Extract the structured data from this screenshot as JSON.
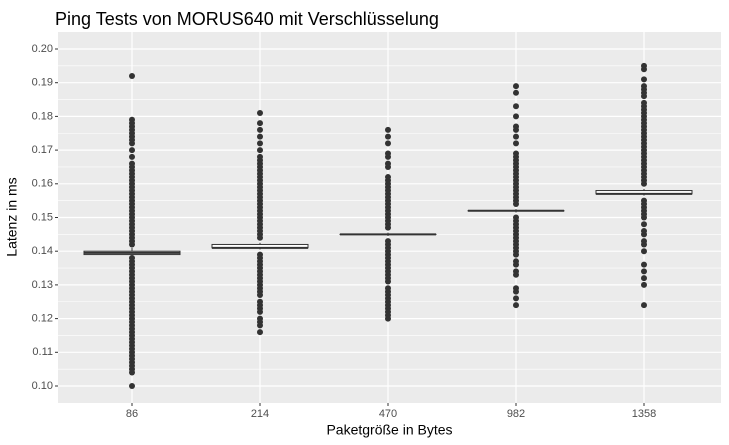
{
  "chart_data": {
    "type": "box",
    "title": "Ping Tests von MORUS640 mit Verschlüsselung",
    "xlabel": "Paketgröße in Bytes",
    "ylabel": "Latenz in ms",
    "categories": [
      "86",
      "214",
      "470",
      "982",
      "1358"
    ],
    "ylim": [
      0.095,
      0.205
    ],
    "yticks": [
      0.1,
      0.11,
      0.12,
      0.13,
      0.14,
      0.15,
      0.16,
      0.17,
      0.18,
      0.19,
      0.2
    ],
    "ytick_labels": [
      "0.10",
      "0.11",
      "0.12",
      "0.13",
      "0.14",
      "0.15",
      "0.16",
      "0.17",
      "0.18",
      "0.19",
      "0.20"
    ],
    "grid": true,
    "colors": {
      "panel": "#ebebeb",
      "grid": "#ffffff",
      "box_fill": "#ffffff",
      "box_line": "#333333",
      "point": "#333333"
    },
    "boxes": [
      {
        "category": "86",
        "q1": 0.139,
        "median": 0.1395,
        "q3": 0.14,
        "whisker_low": 0.1385,
        "whisker_high": 0.141,
        "outliers": [
          0.1,
          0.104,
          0.105,
          0.106,
          0.107,
          0.108,
          0.109,
          0.11,
          0.111,
          0.112,
          0.113,
          0.114,
          0.115,
          0.116,
          0.117,
          0.118,
          0.119,
          0.12,
          0.121,
          0.122,
          0.123,
          0.124,
          0.125,
          0.126,
          0.127,
          0.128,
          0.129,
          0.13,
          0.131,
          0.132,
          0.133,
          0.134,
          0.135,
          0.136,
          0.137,
          0.138,
          0.142,
          0.143,
          0.144,
          0.145,
          0.146,
          0.147,
          0.148,
          0.149,
          0.15,
          0.151,
          0.152,
          0.153,
          0.154,
          0.155,
          0.156,
          0.157,
          0.158,
          0.159,
          0.16,
          0.161,
          0.162,
          0.163,
          0.164,
          0.165,
          0.166,
          0.168,
          0.17,
          0.172,
          0.173,
          0.174,
          0.175,
          0.176,
          0.177,
          0.178,
          0.179,
          0.192
        ]
      },
      {
        "category": "214",
        "q1": 0.141,
        "median": 0.141,
        "q3": 0.142,
        "whisker_low": 0.1405,
        "whisker_high": 0.1425,
        "outliers": [
          0.116,
          0.118,
          0.119,
          0.12,
          0.122,
          0.123,
          0.124,
          0.125,
          0.127,
          0.128,
          0.129,
          0.13,
          0.131,
          0.132,
          0.133,
          0.134,
          0.135,
          0.136,
          0.137,
          0.138,
          0.139,
          0.144,
          0.145,
          0.146,
          0.147,
          0.148,
          0.149,
          0.15,
          0.151,
          0.152,
          0.153,
          0.154,
          0.155,
          0.156,
          0.157,
          0.158,
          0.159,
          0.16,
          0.161,
          0.162,
          0.163,
          0.164,
          0.165,
          0.166,
          0.167,
          0.168,
          0.17,
          0.172,
          0.174,
          0.176,
          0.178,
          0.181
        ]
      },
      {
        "category": "470",
        "q1": 0.145,
        "median": 0.145,
        "q3": 0.145,
        "whisker_low": 0.1445,
        "whisker_high": 0.1455,
        "outliers": [
          0.12,
          0.121,
          0.122,
          0.123,
          0.124,
          0.125,
          0.126,
          0.127,
          0.128,
          0.129,
          0.131,
          0.132,
          0.133,
          0.134,
          0.135,
          0.136,
          0.137,
          0.138,
          0.139,
          0.14,
          0.141,
          0.142,
          0.143,
          0.147,
          0.148,
          0.149,
          0.15,
          0.151,
          0.152,
          0.153,
          0.154,
          0.155,
          0.156,
          0.157,
          0.158,
          0.159,
          0.16,
          0.161,
          0.162,
          0.165,
          0.166,
          0.168,
          0.169,
          0.172,
          0.174,
          0.176
        ]
      },
      {
        "category": "982",
        "q1": 0.152,
        "median": 0.152,
        "q3": 0.152,
        "whisker_low": 0.1515,
        "whisker_high": 0.1525,
        "outliers": [
          0.124,
          0.126,
          0.128,
          0.129,
          0.133,
          0.134,
          0.136,
          0.137,
          0.139,
          0.14,
          0.141,
          0.142,
          0.143,
          0.144,
          0.145,
          0.146,
          0.147,
          0.148,
          0.149,
          0.15,
          0.154,
          0.155,
          0.156,
          0.157,
          0.158,
          0.159,
          0.16,
          0.161,
          0.162,
          0.163,
          0.164,
          0.165,
          0.166,
          0.167,
          0.168,
          0.169,
          0.172,
          0.174,
          0.176,
          0.177,
          0.18,
          0.183,
          0.187,
          0.189
        ]
      },
      {
        "category": "1358",
        "q1": 0.157,
        "median": 0.157,
        "q3": 0.158,
        "whisker_low": 0.1565,
        "whisker_high": 0.1585,
        "outliers": [
          0.124,
          0.13,
          0.132,
          0.134,
          0.136,
          0.14,
          0.142,
          0.143,
          0.145,
          0.146,
          0.148,
          0.15,
          0.151,
          0.152,
          0.153,
          0.154,
          0.155,
          0.16,
          0.161,
          0.162,
          0.163,
          0.164,
          0.165,
          0.166,
          0.167,
          0.168,
          0.169,
          0.17,
          0.171,
          0.172,
          0.173,
          0.174,
          0.175,
          0.176,
          0.177,
          0.178,
          0.179,
          0.18,
          0.181,
          0.182,
          0.183,
          0.184,
          0.186,
          0.187,
          0.188,
          0.189,
          0.191,
          0.194,
          0.195
        ]
      }
    ]
  }
}
